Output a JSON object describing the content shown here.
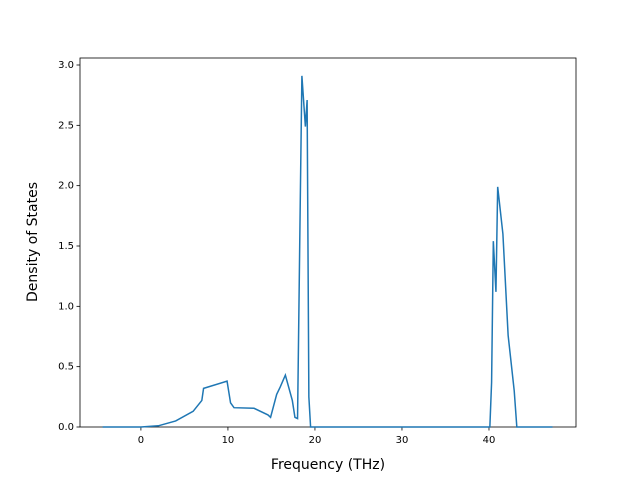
{
  "chart_data": {
    "type": "line",
    "x_label": "Frequency (THz)",
    "y_label": "Density of States",
    "x": [
      -4.4,
      0,
      2,
      4,
      6,
      7,
      7.2,
      9.9,
      10.3,
      10.7,
      13,
      14.6,
      14.9,
      15.6,
      16,
      16.6,
      17.4,
      17.7,
      18.0,
      18.3,
      18.5,
      18.9,
      19.1,
      19.3,
      19.5,
      40.1,
      40.3,
      40.5,
      40.8,
      41.0,
      41.6,
      42.2,
      42.9,
      43.2,
      47.3
    ],
    "series": [
      {
        "color": "#1f77b4",
        "values": [
          0,
          0,
          0.01,
          0.05,
          0.13,
          0.22,
          0.32,
          0.38,
          0.2,
          0.16,
          0.155,
          0.1,
          0.08,
          0.27,
          0.33,
          0.43,
          0.22,
          0.08,
          0.07,
          1.8,
          2.91,
          2.49,
          2.71,
          0.25,
          0,
          0,
          0.37,
          1.54,
          1.12,
          1.99,
          1.6,
          0.76,
          0.3,
          0,
          0
        ]
      }
    ],
    "xlim": [
      -7,
      50
    ],
    "ylim": [
      0,
      3.058
    ],
    "xticks": [
      0,
      10,
      20,
      30,
      40
    ],
    "yticks": [
      {
        "value": 0,
        "label": "0.0"
      },
      0.5,
      {
        "value": 1,
        "label": "1.0"
      },
      1.5,
      {
        "value": 2,
        "label": "2.0"
      },
      2.5,
      {
        "value": 3,
        "label": "3.0"
      }
    ]
  }
}
